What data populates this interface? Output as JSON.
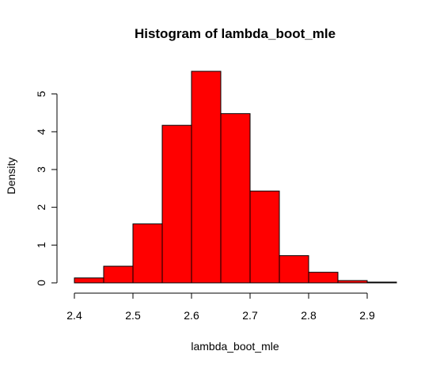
{
  "chart_data": {
    "type": "bar",
    "title": "Histogram of lambda_boot_mle",
    "xlabel": "lambda_boot_mle",
    "ylabel": "Density",
    "bins": [
      {
        "start": 2.4,
        "end": 2.45,
        "density": 0.13
      },
      {
        "start": 2.45,
        "end": 2.5,
        "density": 0.44
      },
      {
        "start": 2.5,
        "end": 2.55,
        "density": 1.56
      },
      {
        "start": 2.55,
        "end": 2.6,
        "density": 4.17
      },
      {
        "start": 2.6,
        "end": 2.65,
        "density": 5.6
      },
      {
        "start": 2.65,
        "end": 2.7,
        "density": 4.48
      },
      {
        "start": 2.7,
        "end": 2.75,
        "density": 2.43
      },
      {
        "start": 2.75,
        "end": 2.8,
        "density": 0.72
      },
      {
        "start": 2.8,
        "end": 2.85,
        "density": 0.28
      },
      {
        "start": 2.85,
        "end": 2.9,
        "density": 0.06
      },
      {
        "start": 2.9,
        "end": 2.95,
        "density": 0.02
      }
    ],
    "xticks": [
      "2.4",
      "2.5",
      "2.6",
      "2.7",
      "2.8",
      "2.9"
    ],
    "yticks": [
      "0",
      "1",
      "2",
      "3",
      "4",
      "5"
    ],
    "xlim": [
      2.4,
      2.95
    ],
    "ylim": [
      0,
      5.6
    ],
    "bar_color": "#ff0000",
    "grid": false
  }
}
